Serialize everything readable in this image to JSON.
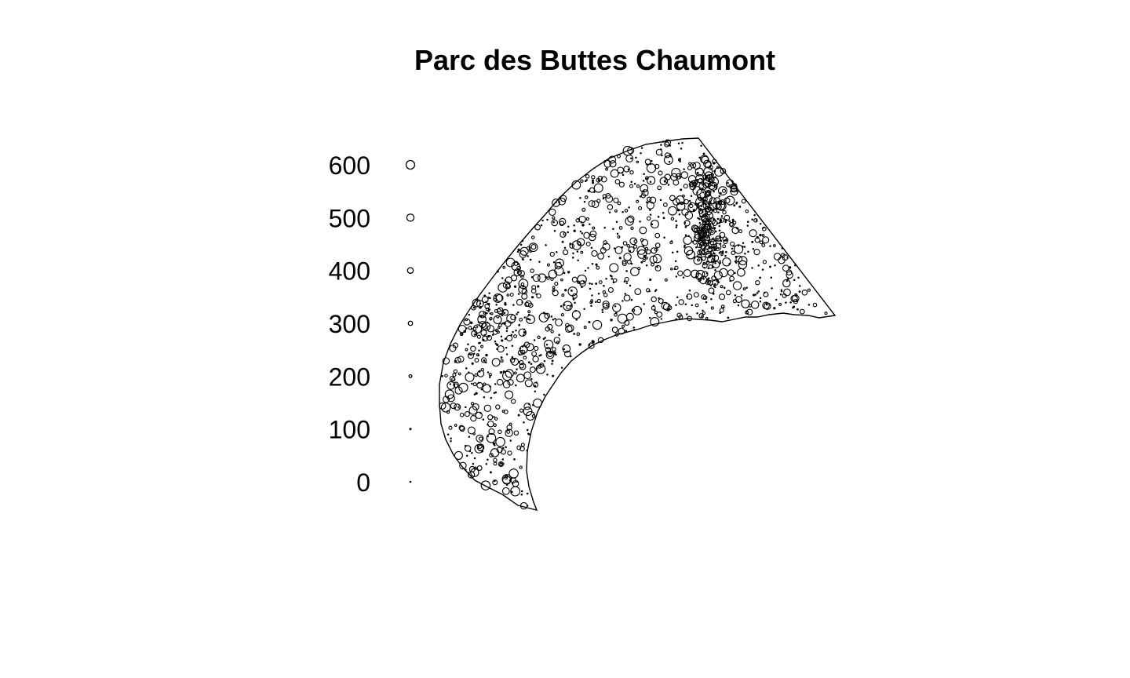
{
  "chart_data": {
    "type": "scatter",
    "title": "Parc des Buttes Chaumont",
    "description_marks": "point pattern in a window; circle radius proportional to mark value",
    "legend": {
      "position": "left",
      "values": [
        0,
        100,
        200,
        300,
        400,
        500,
        600
      ],
      "labels": [
        "0",
        "100",
        "200",
        "300",
        "400",
        "500",
        "600"
      ]
    },
    "mark_max": 640,
    "point_count": 1400,
    "grid": false,
    "colors": {
      "stroke": "#000000",
      "background": "#ffffff"
    }
  }
}
